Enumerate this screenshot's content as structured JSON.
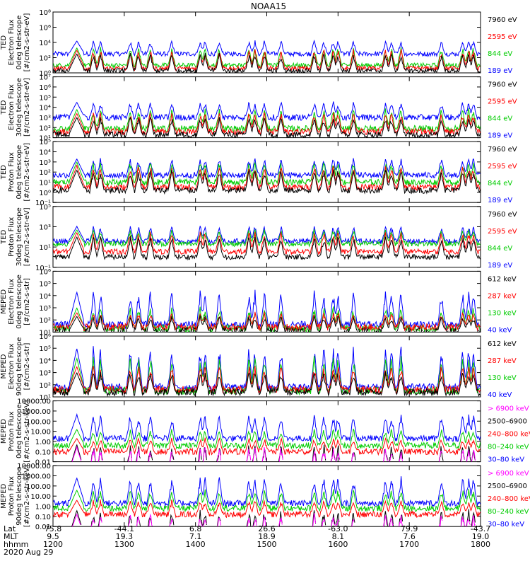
{
  "chart_data": {
    "type": "line",
    "title": "NOAA15",
    "x_range_hhmm": [
      1200,
      1800
    ],
    "x_ticks": [
      "1200",
      "1300",
      "1400",
      "1500",
      "1600",
      "1700",
      "1800"
    ],
    "footer": {
      "row_labels": [
        "Lat",
        "MLT",
        "hhmm"
      ],
      "date": "2020 Aug 29",
      "lat": [
        "75.8",
        "-44.1",
        "6.8",
        "26.6",
        "-63.0",
        "79.9",
        "-43.7"
      ],
      "mlt": [
        "9.5",
        "19.3",
        "7.1",
        "18.9",
        "8.1",
        "7.6",
        "19.0"
      ]
    },
    "panels": [
      {
        "ylabel": [
          "TED",
          "Electron Flux",
          "0deg telescope",
          "[#/cm2-s-str-eV]"
        ],
        "yticks": [
          "10⁰",
          "10²",
          "10⁴",
          "10⁶",
          "10⁸"
        ],
        "yrange_log": [
          0,
          8
        ],
        "series": [
          {
            "name": "7960 eV",
            "color": "#000000",
            "base_log": 0.3,
            "peak_log": 2.5
          },
          {
            "name": "2595 eV",
            "color": "#ff0000",
            "base_log": 0.6,
            "peak_log": 3.0
          },
          {
            "name": "844 eV",
            "color": "#00cc00",
            "base_log": 1.0,
            "peak_log": 3.3
          },
          {
            "name": "189 eV",
            "color": "#0000ff",
            "base_log": 2.5,
            "peak_log": 4.2
          }
        ]
      },
      {
        "ylabel": [
          "TED",
          "Electron Flux",
          "30deg telescope",
          "[#/cm2-s-str-eV]"
        ],
        "yticks": [
          "10¹",
          "10²",
          "10³",
          "10⁴",
          "10⁵",
          "10⁶",
          "10⁷"
        ],
        "yrange_log": [
          1,
          7
        ],
        "series": [
          {
            "name": "7960 eV",
            "color": "#000000",
            "base_log": 1.3,
            "peak_log": 3.0
          },
          {
            "name": "2595 eV",
            "color": "#ff0000",
            "base_log": 1.6,
            "peak_log": 3.4
          },
          {
            "name": "844 eV",
            "color": "#00cc00",
            "base_log": 1.9,
            "peak_log": 3.8
          },
          {
            "name": "189 eV",
            "color": "#0000ff",
            "base_log": 3.0,
            "peak_log": 4.5
          }
        ]
      },
      {
        "ylabel": [
          "TED",
          "Proton Flux",
          "0deg telescope",
          "[#/cm2-s-str-eV]"
        ],
        "yticks": [
          "10⁻¹",
          "10⁰",
          "10¹",
          "10²",
          "10³",
          "10⁴",
          "10⁵"
        ],
        "yrange_log": [
          -1,
          5
        ],
        "series": [
          {
            "name": "7960 eV",
            "color": "#000000",
            "base_log": 0.2,
            "peak_log": 2.2
          },
          {
            "name": "2595 eV",
            "color": "#ff0000",
            "base_log": 0.5,
            "peak_log": 2.6
          },
          {
            "name": "844 eV",
            "color": "#00cc00",
            "base_log": 1.0,
            "peak_log": 3.0
          },
          {
            "name": "189 eV",
            "color": "#0000ff",
            "base_log": 1.7,
            "peak_log": 3.3
          }
        ]
      },
      {
        "ylabel": [
          "TED",
          "Proton Flux",
          "30deg telescope",
          "[#/cm2-s-str-eV]"
        ],
        "yticks": [
          "10⁻¹",
          "10¹",
          "10³",
          "10⁵"
        ],
        "yrange_log": [
          -1,
          6
        ],
        "series": [
          {
            "name": "7960 eV",
            "color": "#000000",
            "base_log": 0.2,
            "peak_log": 2.5
          },
          {
            "name": "2595 eV",
            "color": "#ff0000",
            "base_log": 0.8,
            "peak_log": 3.0
          },
          {
            "name": "844 eV",
            "color": "#00cc00",
            "base_log": 1.7,
            "peak_log": 3.3
          },
          {
            "name": "189 eV",
            "color": "#0000ff",
            "base_log": 2.0,
            "peak_log": 3.7
          }
        ]
      },
      {
        "ylabel": [
          "MEPED",
          "Electron Flux",
          "0deg telescope",
          "[#/cm2-s-str]"
        ],
        "yticks": [
          "10¹",
          "10²",
          "10³",
          "10⁴",
          "10⁵",
          "10⁶"
        ],
        "yrange_log": [
          1,
          6
        ],
        "series": [
          {
            "name": "612 keV",
            "color": "#000000",
            "base_log": 1.1,
            "peak_log": 2.3
          },
          {
            "name": "287 keV",
            "color": "#ff0000",
            "base_log": 1.4,
            "peak_log": 2.6
          },
          {
            "name": "130 keV",
            "color": "#00cc00",
            "base_log": 1.3,
            "peak_log": 3.0
          },
          {
            "name": "40 keV",
            "color": "#0000ff",
            "base_log": 1.6,
            "peak_log": 4.3
          }
        ]
      },
      {
        "ylabel": [
          "MEPED",
          "Electron Flux",
          "90deg telescope",
          "[#/cm2-s-str]"
        ],
        "yticks": [
          "10¹",
          "10²",
          "10³",
          "10⁴",
          "10⁵",
          "10⁶"
        ],
        "yrange_log": [
          1,
          6
        ],
        "series": [
          {
            "name": "612 keV",
            "color": "#000000",
            "base_log": 1.4,
            "peak_log": 3.0
          },
          {
            "name": "287 keV",
            "color": "#ff0000",
            "base_log": 1.6,
            "peak_log": 3.5
          },
          {
            "name": "130 keV",
            "color": "#00cc00",
            "base_log": 1.5,
            "peak_log": 4.2
          },
          {
            "name": "40 keV",
            "color": "#0000ff",
            "base_log": 1.8,
            "peak_log": 5.0
          }
        ]
      },
      {
        "ylabel": [
          "MEPED",
          "Proton Flux",
          "0deg telescope",
          "[#/cm2-s-str-keV]"
        ],
        "yticks": [
          "0.01",
          "0.10",
          "1.00",
          "10.00",
          "100.00",
          "1000.00",
          "10000.00"
        ],
        "yrange_log": [
          -2,
          4
        ],
        "series": [
          {
            "name": "> 6900 keV",
            "color": "#ff00ff",
            "base_log": -3.0,
            "peak_log": -0.6
          },
          {
            "name": "2500–6900",
            "color": "#000000",
            "base_log": -3.0,
            "peak_log": -0.3
          },
          {
            "name": "240–800 keV",
            "color": "#ff0000",
            "base_log": -1.0,
            "peak_log": 0.3
          },
          {
            "name": "80–240 keV",
            "color": "#00cc00",
            "base_log": -0.4,
            "peak_log": 1.2
          },
          {
            "name": "30–80 keV",
            "color": "#0000ff",
            "base_log": 0.3,
            "peak_log": 2.6
          }
        ]
      },
      {
        "ylabel": [
          "MEPED",
          "Proton Flux",
          "90deg telescope",
          "[#/cm2-s-str-keV]"
        ],
        "yticks": [
          "0.01",
          "0.10",
          "1.00",
          "10.00",
          "100.00",
          "1000.00",
          "10000.00"
        ],
        "yrange_log": [
          -2,
          4
        ],
        "series": [
          {
            "name": "> 6900 keV",
            "color": "#ff00ff",
            "base_log": -3.0,
            "peak_log": -0.8
          },
          {
            "name": "2500–6900",
            "color": "#000000",
            "base_log": -3.0,
            "peak_log": -0.4
          },
          {
            "name": "240–800 keV",
            "color": "#ff0000",
            "base_log": -0.8,
            "peak_log": 0.6
          },
          {
            "name": "80–240 keV",
            "color": "#00cc00",
            "base_log": -0.2,
            "peak_log": 1.6
          },
          {
            "name": "30–80 keV",
            "color": "#0000ff",
            "base_log": 0.3,
            "peak_log": 2.8
          }
        ]
      }
    ],
    "events_hhmm": [
      1220,
      1234,
      1240,
      1305,
      1312,
      1322,
      1340,
      1404,
      1408,
      1420,
      1445,
      1450,
      1458,
      1512,
      1540,
      1548,
      1556,
      1600,
      1613,
      1640,
      1645,
      1653,
      1727,
      1745,
      1750,
      1754
    ]
  }
}
